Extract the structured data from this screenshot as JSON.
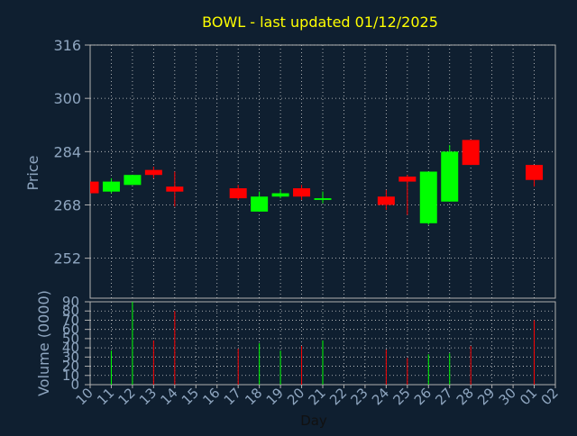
{
  "chart_data": {
    "type": "candlestick",
    "title": "BOWL - last updated 01/12/2025",
    "xlabel": "Day",
    "price_chart": {
      "ylabel": "Price",
      "ylim": [
        240,
        316
      ],
      "yticks": [
        316,
        300,
        284,
        268,
        252
      ],
      "grid": true
    },
    "volume_chart": {
      "ylabel": "Volume (0000)",
      "ylim": [
        0,
        90
      ],
      "yticks": [
        0,
        10,
        20,
        30,
        40,
        50,
        60,
        70,
        80,
        90
      ],
      "grid": true
    },
    "x_ticks": [
      "10",
      "11",
      "12",
      "13",
      "14",
      "15",
      "16",
      "17",
      "18",
      "19",
      "20",
      "21",
      "22",
      "23",
      "24",
      "25",
      "26",
      "27",
      "28",
      "29",
      "30",
      "01",
      "02"
    ],
    "candles": [
      {
        "day": "10",
        "open": 275.0,
        "close": 271.5,
        "high": 275.0,
        "low": 271.5,
        "volume": 0
      },
      {
        "day": "11",
        "open": 272.0,
        "close": 275.0,
        "high": 276.0,
        "low": 271.5,
        "volume": 37
      },
      {
        "day": "12",
        "open": 274.0,
        "close": 277.0,
        "high": 277.0,
        "low": 274.0,
        "volume": 90
      },
      {
        "day": "13",
        "open": 278.5,
        "close": 277.0,
        "high": 279.5,
        "low": 276.0,
        "volume": 48
      },
      {
        "day": "14",
        "open": 273.5,
        "close": 272.0,
        "high": 278.0,
        "low": 267.5,
        "volume": 80
      },
      {
        "day": "17",
        "open": 273.0,
        "close": 270.0,
        "high": 274.0,
        "low": 269.5,
        "volume": 39
      },
      {
        "day": "18",
        "open": 266.0,
        "close": 270.5,
        "high": 272.0,
        "low": 266.0,
        "volume": 45
      },
      {
        "day": "19",
        "open": 270.5,
        "close": 271.5,
        "high": 272.5,
        "low": 270.0,
        "volume": 37
      },
      {
        "day": "20",
        "open": 273.0,
        "close": 270.5,
        "high": 274.0,
        "low": 269.5,
        "volume": 42
      },
      {
        "day": "21",
        "open": 269.5,
        "close": 270.0,
        "high": 272.0,
        "low": 268.5,
        "volume": 48
      },
      {
        "day": "24",
        "open": 270.5,
        "close": 268.0,
        "high": 272.5,
        "low": 266.5,
        "volume": 38
      },
      {
        "day": "25",
        "open": 276.5,
        "close": 275.0,
        "high": 277.0,
        "low": 265.0,
        "volume": 29
      },
      {
        "day": "26",
        "open": 262.5,
        "close": 278.0,
        "high": 278.0,
        "low": 262.0,
        "volume": 33
      },
      {
        "day": "27",
        "open": 269.0,
        "close": 284.0,
        "high": 286.0,
        "low": 269.0,
        "volume": 34
      },
      {
        "day": "28",
        "open": 287.5,
        "close": 280.0,
        "high": 287.5,
        "low": 280.0,
        "volume": 42
      },
      {
        "day": "01",
        "open": 280.0,
        "close": 275.5,
        "high": 280.0,
        "low": 273.5,
        "volume": 70
      }
    ],
    "colors": {
      "background": "#0f1f30",
      "up": "#00ff00",
      "down": "#ff0000",
      "title": "#ffff00",
      "axis_text": "#8fa6c0",
      "plot_border": "#b0b0b0",
      "grid": "#d0d0d0"
    }
  }
}
